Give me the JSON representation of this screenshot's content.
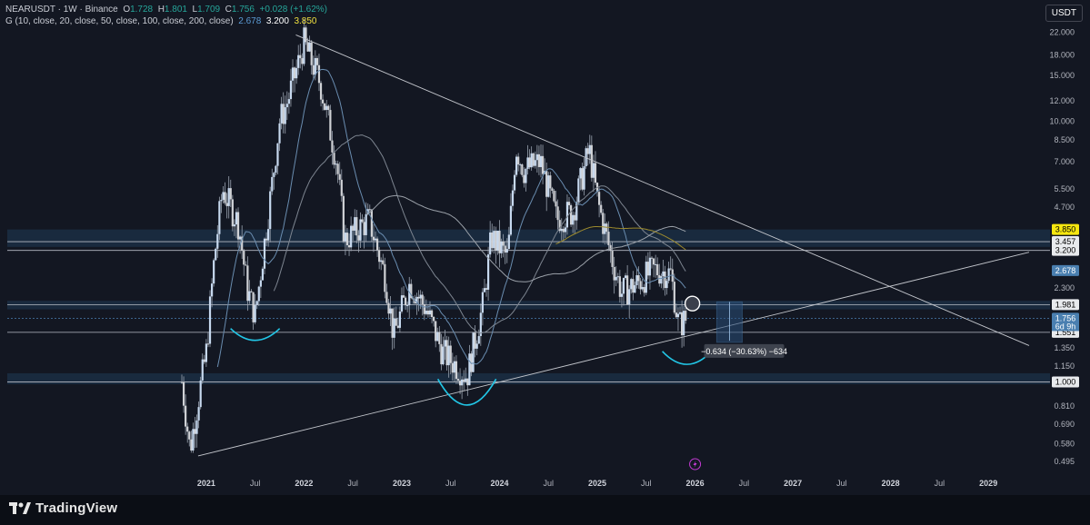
{
  "legend": {
    "symbol": "NEARUSDT · 1W · Binance",
    "open_label": "O",
    "open": "1.728",
    "high_label": "H",
    "high": "1.801",
    "low_label": "L",
    "low": "1.709",
    "close_label": "C",
    "close": "1.756",
    "change": "+0.028 (+1.62%)",
    "indicator": "G (10, close, 20, close, 50, close, 100, close, 200, close)",
    "ma1": "2.678",
    "ma2": "3.200",
    "ma3": "3.850"
  },
  "currency_button": "USDT",
  "brand": "TradingView",
  "measure_label": "−0.634 (−30.63%) −634",
  "countdown": "6d 9h",
  "colors": {
    "up": "#c7d9ef",
    "down": "#d0d2d6",
    "wick": "#9aa3b0",
    "ma_fast": "#5b7a99",
    "ma_slow": "#8a7a2a",
    "zone": "#1f3a55",
    "accent_yellow": "#f5e60f",
    "tv_blue": "#2962ff"
  },
  "chart_data": {
    "type": "candlestick",
    "scale": "log",
    "ylim": [
      0.45,
      23
    ],
    "y_ticks": [
      "22.000",
      "18.000",
      "15.000",
      "12.000",
      "10.000",
      "8.500",
      "7.000",
      "5.500",
      "4.700",
      "3.850",
      "3.457",
      "3.200",
      "2.678",
      "2.300",
      "1.981",
      "1.756",
      "1.551",
      "1.350",
      "1.150",
      "1.000",
      "0.810",
      "0.690",
      "0.580",
      "0.495"
    ],
    "x_ticks": [
      "2021",
      "Jul",
      "2022",
      "Jul",
      "2023",
      "Jul",
      "2024",
      "Jul",
      "2025",
      "Jul",
      "2026",
      "Jul",
      "2027",
      "Jul",
      "2028",
      "Jul",
      "2029"
    ],
    "xlim": [
      "2020-10",
      "2029-06"
    ],
    "price_labels": [
      {
        "text": "3.850",
        "value": 3.85,
        "bg": "#f5e60f",
        "fg": "#000000"
      },
      {
        "text": "3.457",
        "value": 3.457,
        "bg": "#e8eaed",
        "fg": "#000000"
      },
      {
        "text": "3.200",
        "value": 3.2,
        "bg": "#e8eaed",
        "fg": "#000000"
      },
      {
        "text": "2.678",
        "value": 2.678,
        "bg": "#4a7fb0",
        "fg": "#ffffff"
      },
      {
        "text": "1.981",
        "value": 1.981,
        "bg": "#e8eaed",
        "fg": "#000000"
      },
      {
        "text": "1.756",
        "value": 1.756,
        "bg": "#4a7fb0",
        "fg": "#ffffff"
      },
      {
        "text": "1.551",
        "value": 1.551,
        "bg": "#e8eaed",
        "fg": "#000000"
      },
      {
        "text": "1.000",
        "value": 1.0,
        "bg": "#e8eaed",
        "fg": "#000000"
      }
    ],
    "zones": [
      [
        3.3,
        3.85
      ],
      [
        1.9,
        2.05
      ],
      [
        0.98,
        1.08
      ]
    ],
    "hlines": [
      3.457,
      3.2,
      1.981,
      1.551,
      1.0
    ],
    "trendlines": [
      {
        "from": [
          "2021-12",
          21.5
        ],
        "to": [
          "2029-06",
          1.38
        ]
      },
      {
        "from": [
          "2020-12",
          0.52
        ],
        "to": [
          "2029-06",
          3.15
        ]
      }
    ],
    "key_points": [
      {
        "date": "2020-10",
        "price": 1.0
      },
      {
        "date": "2020-11",
        "price": 0.55
      },
      {
        "date": "2021-01",
        "price": 1.3
      },
      {
        "date": "2021-02",
        "price": 3.0
      },
      {
        "date": "2021-03",
        "price": 5.5
      },
      {
        "date": "2021-05",
        "price": 4.0
      },
      {
        "date": "2021-06",
        "price": 2.3
      },
      {
        "date": "2021-07",
        "price": 1.8
      },
      {
        "date": "2021-09",
        "price": 5.5
      },
      {
        "date": "2021-10",
        "price": 10.0
      },
      {
        "date": "2021-11",
        "price": 12.0
      },
      {
        "date": "2022-01",
        "price": 20.0
      },
      {
        "date": "2022-03",
        "price": 14.0
      },
      {
        "date": "2022-05",
        "price": 7.0
      },
      {
        "date": "2022-06",
        "price": 3.5
      },
      {
        "date": "2022-09",
        "price": 4.2
      },
      {
        "date": "2022-11",
        "price": 2.5
      },
      {
        "date": "2022-12",
        "price": 1.5
      },
      {
        "date": "2023-02",
        "price": 2.4
      },
      {
        "date": "2023-04",
        "price": 1.9
      },
      {
        "date": "2023-06",
        "price": 1.3
      },
      {
        "date": "2023-09",
        "price": 1.05
      },
      {
        "date": "2023-11",
        "price": 2.0
      },
      {
        "date": "2023-12",
        "price": 3.6
      },
      {
        "date": "2024-02",
        "price": 3.0
      },
      {
        "date": "2024-03",
        "price": 8.0
      },
      {
        "date": "2024-04",
        "price": 6.5
      },
      {
        "date": "2024-06",
        "price": 7.0
      },
      {
        "date": "2024-08",
        "price": 4.2
      },
      {
        "date": "2024-10",
        "price": 4.5
      },
      {
        "date": "2024-12",
        "price": 7.8
      },
      {
        "date": "2025-01",
        "price": 5.0
      },
      {
        "date": "2025-03",
        "price": 2.8
      },
      {
        "date": "2025-04",
        "price": 2.2
      },
      {
        "date": "2025-06",
        "price": 2.4
      },
      {
        "date": "2025-08",
        "price": 2.7
      },
      {
        "date": "2025-10",
        "price": 2.6
      },
      {
        "date": "2025-11",
        "price": 1.65
      },
      {
        "date": "2025-12",
        "price": 1.756
      }
    ]
  }
}
